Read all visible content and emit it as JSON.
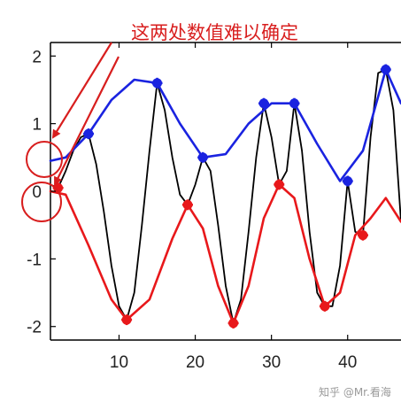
{
  "chart_data": {
    "type": "line",
    "title": "",
    "xlabel": "",
    "ylabel": "",
    "xlim": [
      1,
      47
    ],
    "ylim": [
      -2.2,
      2.2
    ],
    "xticks": [
      10,
      20,
      30,
      40
    ],
    "yticks": [
      -2,
      -1,
      0,
      1,
      2
    ],
    "grid": false,
    "legend": "none",
    "series": [
      {
        "role": "signal",
        "color": "#000000",
        "x": [
          1,
          2,
          3,
          4,
          5,
          6,
          7,
          8,
          9,
          10,
          11,
          12,
          13,
          14,
          15,
          16,
          17,
          18,
          19,
          20,
          21,
          22,
          23,
          24,
          25,
          26,
          27,
          28,
          29,
          30,
          31,
          32,
          33,
          34,
          35,
          36,
          37,
          38,
          39,
          40,
          41,
          42,
          43,
          44,
          45,
          46,
          47
        ],
        "y": [
          0.1,
          0.05,
          0.3,
          0.6,
          0.8,
          0.85,
          0.4,
          -0.3,
          -1.1,
          -1.7,
          -1.9,
          -1.5,
          -0.5,
          0.6,
          1.6,
          1.2,
          0.5,
          -0.05,
          -0.2,
          0.1,
          0.5,
          0.3,
          -0.5,
          -1.4,
          -1.95,
          -1.6,
          -0.6,
          0.5,
          1.3,
          0.8,
          0.1,
          0.3,
          1.3,
          0.6,
          -0.6,
          -1.5,
          -1.7,
          -1.7,
          -1.1,
          0.15,
          -0.6,
          -0.65,
          0.8,
          1.75,
          1.8,
          1.2,
          -0.45
        ]
      },
      {
        "role": "upper-envelope",
        "color": "#1a23e0",
        "x": [
          1,
          3,
          6,
          9,
          12,
          15,
          18,
          21,
          24,
          27,
          30,
          33,
          36,
          39,
          42,
          45,
          47
        ],
        "y": [
          0.45,
          0.5,
          0.85,
          1.35,
          1.65,
          1.6,
          1.0,
          0.5,
          0.55,
          1.0,
          1.3,
          1.3,
          0.7,
          0.15,
          0.6,
          1.8,
          1.3
        ]
      },
      {
        "role": "lower-envelope",
        "color": "#e8181b",
        "x": [
          1,
          3,
          6,
          9,
          11,
          14,
          17,
          19,
          21,
          23,
          25,
          27,
          29,
          31,
          33,
          35,
          37,
          39,
          41,
          43,
          45,
          47
        ],
        "y": [
          0.0,
          -0.05,
          -0.8,
          -1.6,
          -1.9,
          -1.6,
          -0.7,
          -0.2,
          -0.55,
          -1.4,
          -1.95,
          -1.4,
          -0.4,
          0.1,
          -0.1,
          -1.0,
          -1.7,
          -1.5,
          -0.65,
          -0.4,
          -0.1,
          -0.45
        ]
      }
    ],
    "markers": {
      "upper": {
        "color": "#1a23e0",
        "x": [
          6,
          15,
          21,
          29,
          33,
          40,
          45
        ],
        "y": [
          0.85,
          1.6,
          0.5,
          1.3,
          1.3,
          0.15,
          1.8
        ]
      },
      "lower": {
        "color": "#e8181b",
        "x": [
          2,
          11,
          19,
          25,
          31,
          37,
          42
        ],
        "y": [
          0.05,
          -1.9,
          -0.2,
          -1.95,
          0.1,
          -1.7,
          -0.65
        ]
      }
    },
    "annotation": {
      "text": "这两处数值难以确定",
      "color": "#d81e1e"
    }
  },
  "watermark": "知乎 @Mr.看海"
}
